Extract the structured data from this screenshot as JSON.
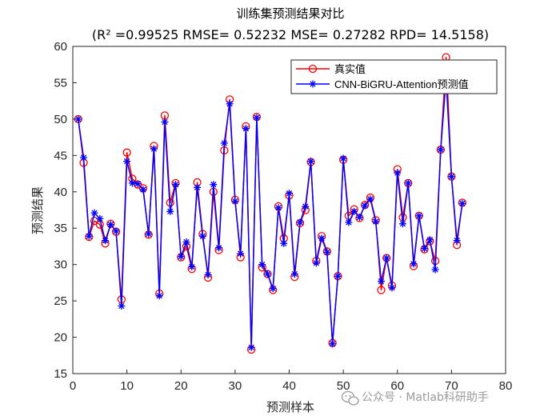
{
  "chart_data": {
    "type": "line",
    "title": "训练集预测结果对比",
    "subtitle": "(R² =0.99525 RMSE= 0.52232 MSE= 0.27282 RPD= 14.5158)",
    "xlabel": "预测样本",
    "ylabel": "预测结果",
    "xlim": [
      0,
      80
    ],
    "ylim": [
      15,
      60
    ],
    "xticks": [
      0,
      10,
      20,
      30,
      40,
      50,
      60,
      70,
      80
    ],
    "yticks": [
      15,
      20,
      25,
      30,
      35,
      40,
      45,
      50,
      55,
      60
    ],
    "grid": false,
    "legend_position": "top-right",
    "x": [
      1,
      2,
      3,
      4,
      5,
      6,
      7,
      8,
      9,
      10,
      11,
      12,
      13,
      14,
      15,
      16,
      17,
      18,
      19,
      20,
      21,
      22,
      23,
      24,
      25,
      26,
      27,
      28,
      29,
      30,
      31,
      32,
      33,
      34,
      35,
      36,
      37,
      38,
      39,
      40,
      41,
      42,
      43,
      44,
      45,
      46,
      47,
      48,
      49,
      50,
      51,
      52,
      53,
      54,
      55,
      56,
      57,
      58,
      59,
      60,
      61,
      62,
      63,
      64,
      65,
      66,
      67,
      68,
      69,
      70,
      71,
      72
    ],
    "series": [
      {
        "name": "真实值",
        "color": "#ff0000",
        "marker": "circle",
        "values": [
          50.0,
          44.0,
          33.8,
          36.0,
          35.5,
          32.9,
          35.6,
          34.5,
          25.2,
          45.4,
          41.8,
          41.0,
          40.5,
          34.1,
          46.3,
          26.0,
          50.5,
          38.5,
          41.2,
          31.0,
          32.5,
          29.4,
          41.3,
          34.2,
          28.2,
          40.0,
          32.0,
          45.7,
          52.7,
          38.9,
          31.0,
          49.0,
          18.3,
          50.3,
          29.6,
          28.7,
          26.5,
          38.0,
          33.6,
          39.5,
          28.3,
          35.7,
          37.5,
          44.1,
          30.5,
          33.9,
          31.8,
          19.2,
          28.4,
          44.4,
          36.7,
          37.6,
          36.4,
          38.2,
          39.2,
          36.1,
          26.5,
          30.9,
          27.1,
          43.1,
          36.5,
          41.2,
          29.8,
          36.7,
          32.1,
          33.2,
          30.5,
          45.8,
          58.5,
          42.1,
          32.7,
          38.5
        ]
      },
      {
        "name": "CNN-BiGRU-Attention预测值",
        "color": "#0000ff",
        "marker": "asterisk",
        "values": [
          50.0,
          44.7,
          33.9,
          37.1,
          36.3,
          33.3,
          35.5,
          34.6,
          24.3,
          44.2,
          41.2,
          41.1,
          40.3,
          34.2,
          45.9,
          25.7,
          49.6,
          37.3,
          41.0,
          31.1,
          33.1,
          29.7,
          40.6,
          33.9,
          28.6,
          41.0,
          32.3,
          46.7,
          52.1,
          38.7,
          31.5,
          48.7,
          18.6,
          50.2,
          30.0,
          28.7,
          26.7,
          37.8,
          32.9,
          39.8,
          28.7,
          35.8,
          38.0,
          44.2,
          30.2,
          33.6,
          31.7,
          19.1,
          28.4,
          44.6,
          35.8,
          37.3,
          36.5,
          38.1,
          39.0,
          35.9,
          27.7,
          30.9,
          26.8,
          42.6,
          35.6,
          41.2,
          30.1,
          36.7,
          32.2,
          33.4,
          29.3,
          45.8,
          55.5,
          42.1,
          33.3,
          38.4
        ]
      }
    ]
  },
  "watermark": {
    "icon": "wechat-icon",
    "text": "公众号 · Matlab科研助手"
  }
}
